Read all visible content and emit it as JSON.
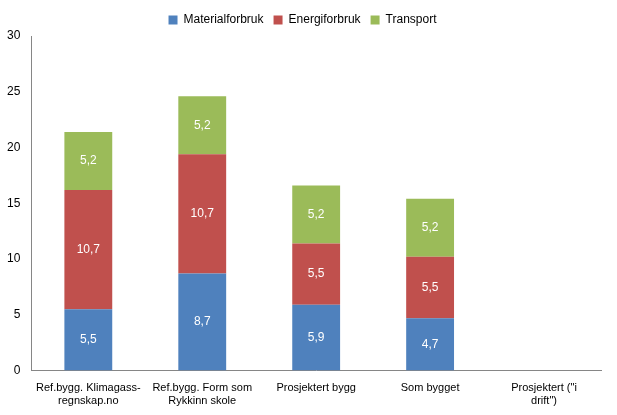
{
  "chart_data": {
    "type": "bar",
    "categories": [
      "Ref.bygg. Klimagass-regnskap.no",
      "Ref.bygg. Form som Rykkinn skole",
      "Prosjektert bygg",
      "Som bygget",
      "Prosjektert (\"i drift\")"
    ],
    "series": [
      {
        "name": "Materialforbruk",
        "color": "#4f81bd",
        "values": [
          5.5,
          8.7,
          5.9,
          4.7,
          null
        ],
        "value_labels": [
          "5,5",
          "8,7",
          "5,9",
          "4,7",
          null
        ]
      },
      {
        "name": "Energiforbruk",
        "color": "#c0504d",
        "values": [
          10.7,
          10.7,
          5.5,
          5.5,
          null
        ],
        "value_labels": [
          "10,7",
          "10,7",
          "5,5",
          "5,5",
          null
        ]
      },
      {
        "name": "Transport",
        "color": "#9bbb59",
        "values": [
          5.2,
          5.2,
          5.2,
          5.2,
          null
        ],
        "value_labels": [
          "5,2",
          "5,2",
          "5,2",
          "5,2",
          null
        ]
      }
    ],
    "ylim": [
      0,
      30
    ],
    "yticks": [
      0,
      5,
      10,
      15,
      20,
      25,
      30
    ],
    "stacked": true,
    "grid": false,
    "legend": "top",
    "data_labels": true
  }
}
